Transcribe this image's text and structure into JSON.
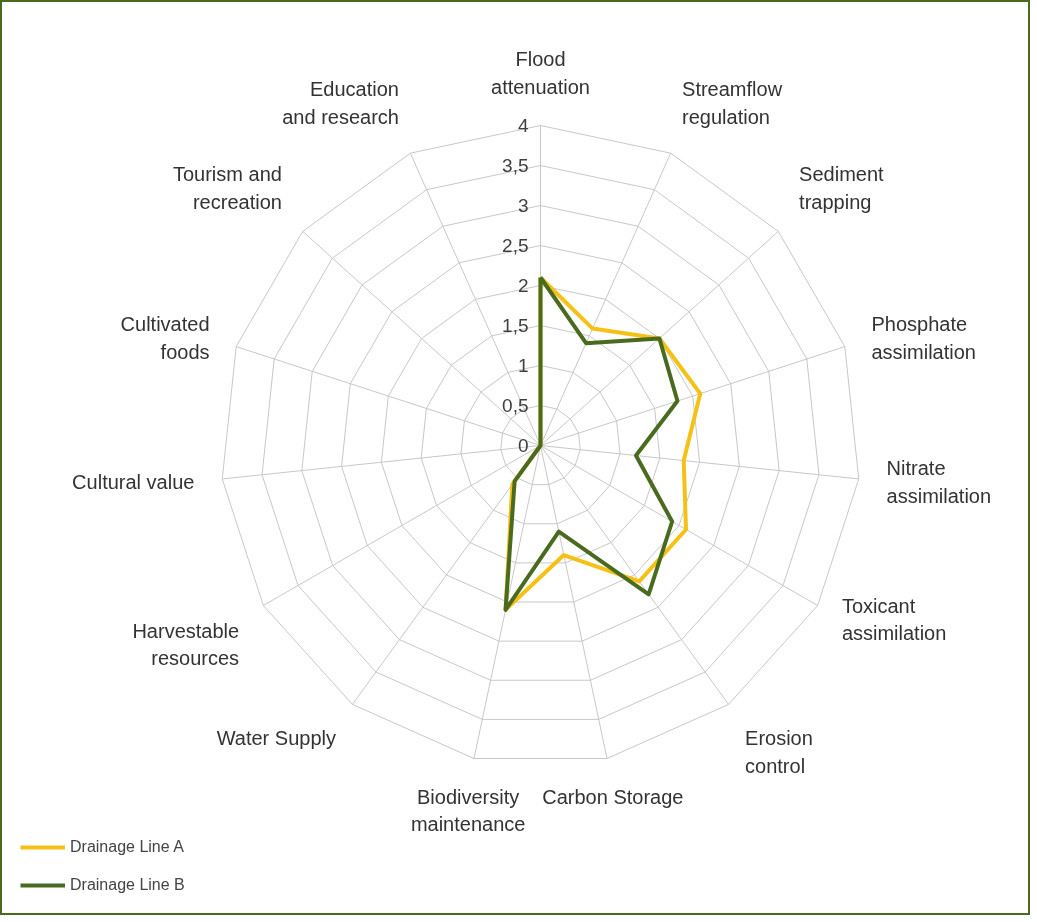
{
  "chart_data": {
    "type": "radar",
    "categories": [
      "Flood attenuation",
      "Streamflow regulation",
      "Sediment trapping",
      "Phosphate assimilation",
      "Nitrate assimilation",
      "Toxicant assimilation",
      "Erosion control",
      "Carbon Storage",
      "Biodiversity maintenance",
      "Water Supply",
      "Harvestable resources",
      "Cultural value",
      "Cultivated foods",
      "Tourism and recreation",
      "Education and research"
    ],
    "series": [
      {
        "name": "Drainage Line A",
        "color": "#f5c116",
        "values": [
          2.1,
          1.6,
          2,
          2.1,
          1.8,
          2.1,
          2.1,
          1.4,
          2.1,
          0.6,
          0,
          0,
          0,
          0,
          0
        ]
      },
      {
        "name": "Drainage Line B",
        "color": "#4a6b1f",
        "values": [
          2.1,
          1.4,
          2,
          1.8,
          1.2,
          1.9,
          2.3,
          1.1,
          2.1,
          0.55,
          0,
          0,
          0,
          0,
          0
        ]
      }
    ],
    "ylim": [
      0,
      4
    ],
    "yticks": [
      0,
      {
        "value": 0.5,
        "label": "0,5"
      },
      1,
      {
        "value": 1.5,
        "label": "1,5"
      },
      2,
      {
        "value": 2.5,
        "label": "2,5"
      },
      3,
      {
        "value": 3.5,
        "label": "3,5"
      },
      4
    ],
    "grid": true,
    "legend": "bottom left"
  }
}
